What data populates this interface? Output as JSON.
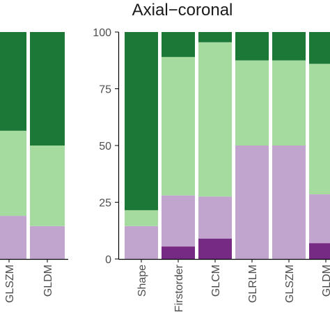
{
  "colors": {
    "dark_purple": "#762a83",
    "light_purple": "#c2a5cf",
    "light_green": "#a6dba0",
    "dark_green": "#1b7837",
    "axis": "#000000",
    "text": "#4d4d4d"
  },
  "chart_data": [
    {
      "type": "bar",
      "stacked": true,
      "title": "",
      "partial": "cropped left panel",
      "categories": [
        "GLSZM",
        "GLDM"
      ],
      "ylim": [
        0,
        100
      ],
      "series": [
        {
          "color": "dark_purple",
          "values": [
            0,
            0
          ]
        },
        {
          "color": "light_purple",
          "values": [
            19,
            14.5
          ]
        },
        {
          "color": "light_green",
          "values": [
            37.5,
            35.5
          ]
        },
        {
          "color": "dark_green",
          "values": [
            43.5,
            50
          ]
        }
      ]
    },
    {
      "type": "bar",
      "stacked": true,
      "title": "Axial−coronal",
      "categories": [
        "Shape",
        "Firstorder",
        "GLCM",
        "GLRLM",
        "GLSZM",
        "GLDM"
      ],
      "ylim": [
        0,
        100
      ],
      "yticks": [
        "0",
        "25",
        "50",
        "75",
        "100"
      ],
      "ytick_values": [
        0,
        25,
        50,
        75,
        100
      ],
      "series": [
        {
          "color": "dark_purple",
          "values": [
            0,
            5.5,
            9,
            0,
            0,
            7
          ]
        },
        {
          "color": "light_purple",
          "values": [
            14.5,
            22.5,
            18.5,
            50,
            50,
            21.5
          ]
        },
        {
          "color": "light_green",
          "values": [
            7,
            61,
            68,
            37.5,
            37.5,
            57.5
          ]
        },
        {
          "color": "dark_green",
          "values": [
            78.5,
            11,
            4.5,
            12.5,
            12.5,
            14
          ]
        }
      ]
    }
  ]
}
